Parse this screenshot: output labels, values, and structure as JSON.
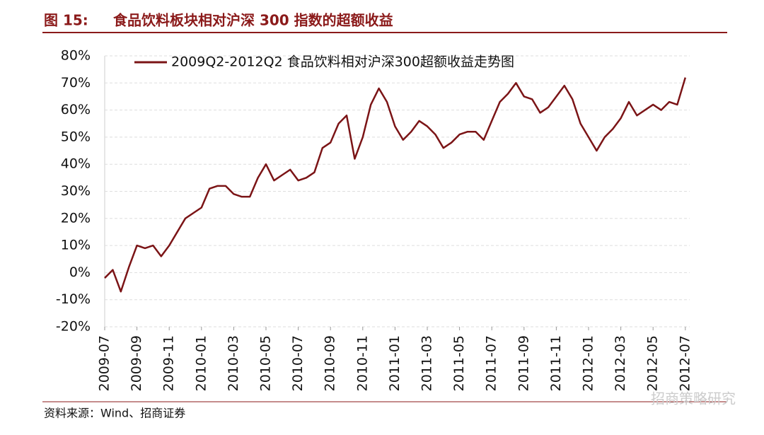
{
  "figure_label": "图 15:",
  "watermark": "招商策略研究",
  "chart_data": {
    "type": "line",
    "title": "食品饮料板块相对沪深 300 指数的超额收益",
    "source": "资料来源：Wind、招商证券",
    "categories": [
      "2009-07",
      null,
      null,
      null,
      "2009-09",
      null,
      null,
      null,
      "2009-11",
      null,
      null,
      null,
      "2010-01",
      null,
      null,
      null,
      "2010-03",
      null,
      null,
      null,
      "2010-05",
      null,
      null,
      null,
      "2010-07",
      null,
      null,
      null,
      "2010-09",
      null,
      null,
      null,
      "2010-11",
      null,
      null,
      null,
      "2011-01",
      null,
      null,
      null,
      "2011-03",
      null,
      null,
      null,
      "2011-05",
      null,
      null,
      null,
      "2011-07",
      null,
      null,
      null,
      "2011-09",
      null,
      null,
      null,
      "2011-11",
      null,
      null,
      null,
      "2012-01",
      null,
      null,
      null,
      "2012-03",
      null,
      null,
      null,
      "2012-05",
      null,
      null,
      null,
      "2012-07"
    ],
    "series": [
      {
        "name": "2009Q2-2012Q2   食品饮料相对沪深300超额收益走势图",
        "color": "#7b1416",
        "values": [
          -2,
          1,
          -7,
          2,
          10,
          9,
          10,
          6,
          10,
          15,
          20,
          22,
          24,
          31,
          32,
          32,
          29,
          28,
          28,
          35,
          40,
          34,
          36,
          38,
          34,
          35,
          37,
          46,
          48,
          55,
          58,
          42,
          50,
          62,
          68,
          63,
          54,
          49,
          52,
          56,
          54,
          51,
          46,
          48,
          51,
          52,
          52,
          49,
          56,
          63,
          66,
          70,
          65,
          64,
          59,
          61,
          65,
          69,
          64,
          55,
          50,
          45,
          50,
          53,
          57,
          63,
          58,
          60,
          62,
          60,
          63,
          62,
          72
        ]
      }
    ],
    "ylim": [
      -20,
      80
    ],
    "yticks": [
      {
        "value": -20,
        "label": "-20%"
      },
      {
        "value": -10,
        "label": "-10%"
      },
      {
        "value": 0,
        "label": "0%"
      },
      {
        "value": 10,
        "label": "10%"
      },
      {
        "value": 20,
        "label": "20%"
      },
      {
        "value": 30,
        "label": "30%"
      },
      {
        "value": 40,
        "label": "40%"
      },
      {
        "value": 50,
        "label": "50%"
      },
      {
        "value": 60,
        "label": "60%"
      },
      {
        "value": 70,
        "label": "70%"
      },
      {
        "value": 80,
        "label": "80%"
      }
    ],
    "grid": true
  }
}
